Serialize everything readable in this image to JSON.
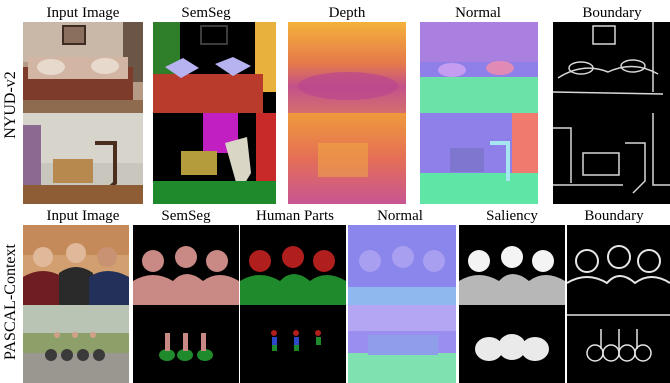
{
  "nyud": {
    "dataset_label": "NYUD-v2",
    "headers": [
      "Input Image",
      "SemSeg",
      "Depth",
      "Normal",
      "Boundary"
    ]
  },
  "pascal": {
    "dataset_label": "PASCAL-Context",
    "headers": [
      "Input Image",
      "SemSeg",
      "Human Parts",
      "Normal",
      "Saliency",
      "Boundary"
    ]
  }
}
